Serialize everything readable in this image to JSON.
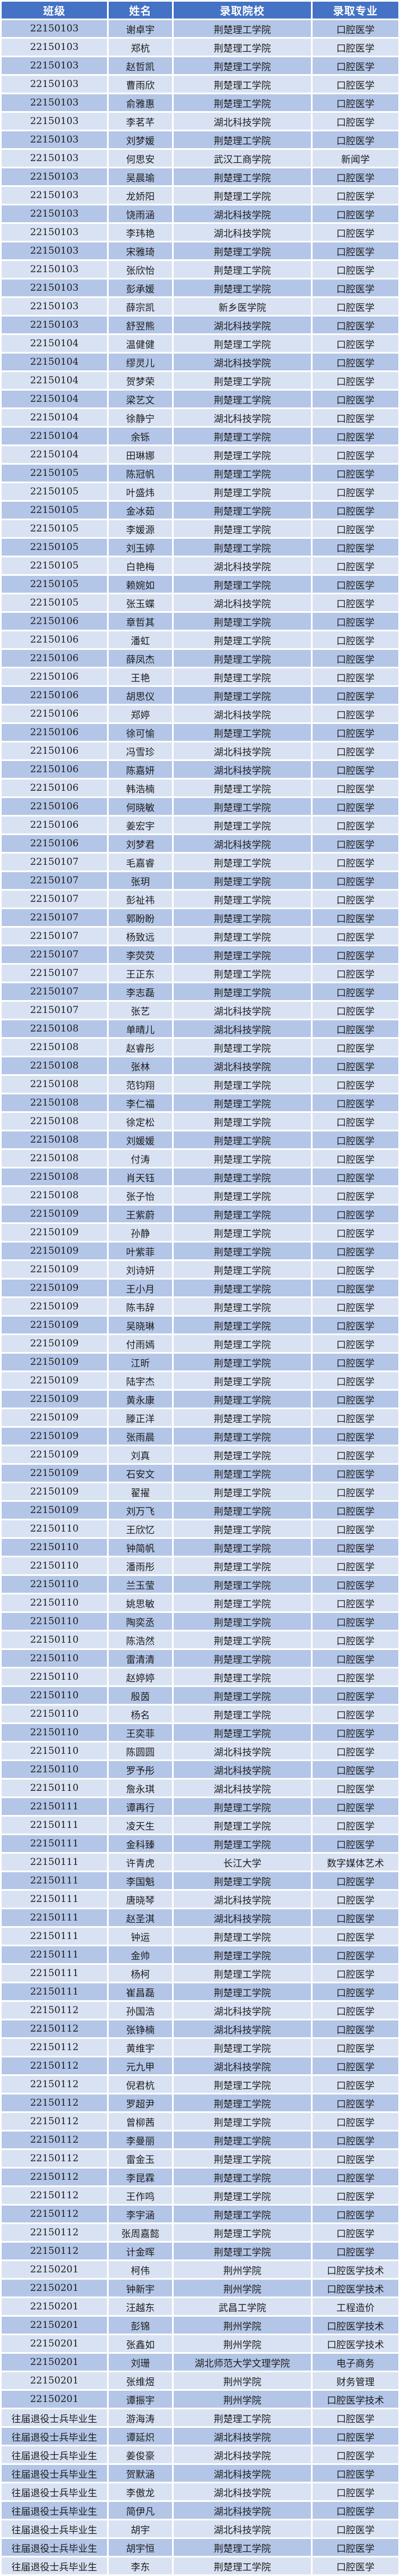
{
  "colors": {
    "header_bg": "#4472C4",
    "header_text": "#FFFFFF",
    "row_odd_bg": "#B4C6E7",
    "row_even_bg": "#D9E2F3",
    "gridline": "#FFFFFF",
    "cell_text": "#1C1C1C"
  },
  "table": {
    "columns": [
      "班级",
      "姓名",
      "录取院校",
      "录取专业"
    ],
    "rows": [
      [
        "22150103",
        "谢卓宇",
        "荆楚理工学院",
        "口腔医学"
      ],
      [
        "22150103",
        "郑杭",
        "荆楚理工学院",
        "口腔医学"
      ],
      [
        "22150103",
        "赵哲凯",
        "荆楚理工学院",
        "口腔医学"
      ],
      [
        "22150103",
        "曹雨欣",
        "荆楚理工学院",
        "口腔医学"
      ],
      [
        "22150103",
        "俞雅惠",
        "荆楚理工学院",
        "口腔医学"
      ],
      [
        "22150103",
        "李茗芊",
        "湖北科技学院",
        "口腔医学"
      ],
      [
        "22150103",
        "刘梦媛",
        "荆楚理工学院",
        "口腔医学"
      ],
      [
        "22150103",
        "何思安",
        "武汉工商学院",
        "新闻学"
      ],
      [
        "22150103",
        "吴晨瑜",
        "荆楚理工学院",
        "口腔医学"
      ],
      [
        "22150103",
        "龙娇阳",
        "荆楚理工学院",
        "口腔医学"
      ],
      [
        "22150103",
        "饶雨涵",
        "湖北科技学院",
        "口腔医学"
      ],
      [
        "22150103",
        "李玮艳",
        "湖北科技学院",
        "口腔医学"
      ],
      [
        "22150103",
        "宋雅琦",
        "荆楚理工学院",
        "口腔医学"
      ],
      [
        "22150103",
        "张欣怡",
        "荆楚理工学院",
        "口腔医学"
      ],
      [
        "22150103",
        "彭承媛",
        "荆楚理工学院",
        "口腔医学"
      ],
      [
        "22150103",
        "薛宗凯",
        "新乡医学院",
        "口腔医学"
      ],
      [
        "22150103",
        "舒翌熊",
        "湖北科技学院",
        "口腔医学"
      ],
      [
        "22150104",
        "温健健",
        "荆楚理工学院",
        "口腔医学"
      ],
      [
        "22150104",
        "缪灵儿",
        "湖北科技学院",
        "口腔医学"
      ],
      [
        "22150104",
        "贺梦荣",
        "荆楚理工学院",
        "口腔医学"
      ],
      [
        "22150104",
        "梁艺文",
        "荆楚理工学院",
        "口腔医学"
      ],
      [
        "22150104",
        "徐静宁",
        "湖北科技学院",
        "口腔医学"
      ],
      [
        "22150104",
        "余铄",
        "荆楚理工学院",
        "口腔医学"
      ],
      [
        "22150104",
        "田琳娜",
        "荆楚理工学院",
        "口腔医学"
      ],
      [
        "22150105",
        "陈冠帆",
        "荆楚理工学院",
        "口腔医学"
      ],
      [
        "22150105",
        "叶盛炜",
        "荆楚理工学院",
        "口腔医学"
      ],
      [
        "22150105",
        "金冰茹",
        "荆楚理工学院",
        "口腔医学"
      ],
      [
        "22150105",
        "李媛源",
        "荆楚理工学院",
        "口腔医学"
      ],
      [
        "22150105",
        "刘玉婷",
        "荆楚理工学院",
        "口腔医学"
      ],
      [
        "22150105",
        "白艳梅",
        "湖北科技学院",
        "口腔医学"
      ],
      [
        "22150105",
        "赖婉如",
        "荆楚理工学院",
        "口腔医学"
      ],
      [
        "22150105",
        "张玉蝶",
        "湖北科技学院",
        "口腔医学"
      ],
      [
        "22150106",
        "章哲其",
        "荆楚理工学院",
        "口腔医学"
      ],
      [
        "22150106",
        "潘虹",
        "荆楚理工学院",
        "口腔医学"
      ],
      [
        "22150106",
        "薛凤杰",
        "荆楚理工学院",
        "口腔医学"
      ],
      [
        "22150106",
        "王艳",
        "荆楚理工学院",
        "口腔医学"
      ],
      [
        "22150106",
        "胡思仪",
        "荆楚理工学院",
        "口腔医学"
      ],
      [
        "22150106",
        "郑婷",
        "湖北科技学院",
        "口腔医学"
      ],
      [
        "22150106",
        "徐可愉",
        "荆楚理工学院",
        "口腔医学"
      ],
      [
        "22150106",
        "冯雪珍",
        "湖北科技学院",
        "口腔医学"
      ],
      [
        "22150106",
        "陈嘉妍",
        "湖北科技学院",
        "口腔医学"
      ],
      [
        "22150106",
        "韩浩楠",
        "荆楚理工学院",
        "口腔医学"
      ],
      [
        "22150106",
        "何晓敏",
        "荆楚理工学院",
        "口腔医学"
      ],
      [
        "22150106",
        "姜宏宇",
        "荆楚理工学院",
        "口腔医学"
      ],
      [
        "22150106",
        "刘梦君",
        "湖北科技学院",
        "口腔医学"
      ],
      [
        "22150107",
        "毛嘉睿",
        "荆楚理工学院",
        "口腔医学"
      ],
      [
        "22150107",
        "张玥",
        "荆楚理工学院",
        "口腔医学"
      ],
      [
        "22150107",
        "彭祉祎",
        "荆楚理工学院",
        "口腔医学"
      ],
      [
        "22150107",
        "郭盼盼",
        "荆楚理工学院",
        "口腔医学"
      ],
      [
        "22150107",
        "杨致远",
        "荆楚理工学院",
        "口腔医学"
      ],
      [
        "22150107",
        "李荧荧",
        "荆楚理工学院",
        "口腔医学"
      ],
      [
        "22150107",
        "王正东",
        "荆楚理工学院",
        "口腔医学"
      ],
      [
        "22150107",
        "李志磊",
        "荆楚理工学院",
        "口腔医学"
      ],
      [
        "22150107",
        "张艺",
        "湖北科技学院",
        "口腔医学"
      ],
      [
        "22150108",
        "单晴儿",
        "湖北科技学院",
        "口腔医学"
      ],
      [
        "22150108",
        "赵睿彤",
        "荆楚理工学院",
        "口腔医学"
      ],
      [
        "22150108",
        "张林",
        "湖北科技学院",
        "口腔医学"
      ],
      [
        "22150108",
        "范钧翔",
        "荆楚理工学院",
        "口腔医学"
      ],
      [
        "22150108",
        "李仁福",
        "荆楚理工学院",
        "口腔医学"
      ],
      [
        "22150108",
        "徐定松",
        "荆楚理工学院",
        "口腔医学"
      ],
      [
        "22150108",
        "刘媛媛",
        "荆楚理工学院",
        "口腔医学"
      ],
      [
        "22150108",
        "付涛",
        "荆楚理工学院",
        "口腔医学"
      ],
      [
        "22150108",
        "肖天钰",
        "荆楚理工学院",
        "口腔医学"
      ],
      [
        "22150108",
        "张子怡",
        "荆楚理工学院",
        "口腔医学"
      ],
      [
        "22150109",
        "王紫蔚",
        "荆楚理工学院",
        "口腔医学"
      ],
      [
        "22150109",
        "孙静",
        "荆楚理工学院",
        "口腔医学"
      ],
      [
        "22150109",
        "叶紫菲",
        "荆楚理工学院",
        "口腔医学"
      ],
      [
        "22150109",
        "刘诗妍",
        "荆楚理工学院",
        "口腔医学"
      ],
      [
        "22150109",
        "王小月",
        "荆楚理工学院",
        "口腔医学"
      ],
      [
        "22150109",
        "陈韦辞",
        "荆楚理工学院",
        "口腔医学"
      ],
      [
        "22150109",
        "吴晓琳",
        "荆楚理工学院",
        "口腔医学"
      ],
      [
        "22150109",
        "付雨嫣",
        "荆楚理工学院",
        "口腔医学"
      ],
      [
        "22150109",
        "江昕",
        "荆楚理工学院",
        "口腔医学"
      ],
      [
        "22150109",
        "陆宇杰",
        "荆楚理工学院",
        "口腔医学"
      ],
      [
        "22150109",
        "黄永康",
        "荆楚理工学院",
        "口腔医学"
      ],
      [
        "22150109",
        "滕正洋",
        "荆楚理工学院",
        "口腔医学"
      ],
      [
        "22150109",
        "张雨晨",
        "荆楚理工学院",
        "口腔医学"
      ],
      [
        "22150109",
        "刘真",
        "荆楚理工学院",
        "口腔医学"
      ],
      [
        "22150109",
        "石安文",
        "荆楚理工学院",
        "口腔医学"
      ],
      [
        "22150109",
        "翟擢",
        "荆楚理工学院",
        "口腔医学"
      ],
      [
        "22150109",
        "刘万飞",
        "荆楚理工学院",
        "口腔医学"
      ],
      [
        "22150110",
        "王欣忆",
        "荆楚理工学院",
        "口腔医学"
      ],
      [
        "22150110",
        "钟简帆",
        "荆楚理工学院",
        "口腔医学"
      ],
      [
        "22150110",
        "潘雨彤",
        "荆楚理工学院",
        "口腔医学"
      ],
      [
        "22150110",
        "兰玉莹",
        "荆楚理工学院",
        "口腔医学"
      ],
      [
        "22150110",
        "姚思敏",
        "荆楚理工学院",
        "口腔医学"
      ],
      [
        "22150110",
        "陶奕丞",
        "荆楚理工学院",
        "口腔医学"
      ],
      [
        "22150110",
        "陈浩然",
        "荆楚理工学院",
        "口腔医学"
      ],
      [
        "22150110",
        "雷清清",
        "荆楚理工学院",
        "口腔医学"
      ],
      [
        "22150110",
        "赵婷婷",
        "荆楚理工学院",
        "口腔医学"
      ],
      [
        "22150110",
        "殷茵",
        "荆楚理工学院",
        "口腔医学"
      ],
      [
        "22150110",
        "杨名",
        "荆楚理工学院",
        "口腔医学"
      ],
      [
        "22150110",
        "王奕菲",
        "荆楚理工学院",
        "口腔医学"
      ],
      [
        "22150110",
        "陈圆圆",
        "湖北科技学院",
        "口腔医学"
      ],
      [
        "22150110",
        "罗予彤",
        "湖北科技学院",
        "口腔医学"
      ],
      [
        "22150110",
        "詹永琪",
        "湖北科技学院",
        "口腔医学"
      ],
      [
        "22150111",
        "谭再行",
        "荆楚理工学院",
        "口腔医学"
      ],
      [
        "22150111",
        "凌天生",
        "荆楚理工学院",
        "口腔医学"
      ],
      [
        "22150111",
        "金科臻",
        "荆楚理工学院",
        "口腔医学"
      ],
      [
        "22150111",
        "许青虎",
        "长江大学",
        "数字媒体艺术"
      ],
      [
        "22150111",
        "李国魁",
        "荆楚理工学院",
        "口腔医学"
      ],
      [
        "22150111",
        "唐晓琴",
        "湖北科技学院",
        "口腔医学"
      ],
      [
        "22150111",
        "赵圣淇",
        "湖北科技学院",
        "口腔医学"
      ],
      [
        "22150111",
        "钟运",
        "荆楚理工学院",
        "口腔医学"
      ],
      [
        "22150111",
        "金帅",
        "荆楚理工学院",
        "口腔医学"
      ],
      [
        "22150111",
        "杨柯",
        "荆楚理工学院",
        "口腔医学"
      ],
      [
        "22150111",
        "崔昌磊",
        "荆楚理工学院",
        "口腔医学"
      ],
      [
        "22150112",
        "孙国浩",
        "湖北科技学院",
        "口腔医学"
      ],
      [
        "22150112",
        "张铮楠",
        "湖北科技学院",
        "口腔医学"
      ],
      [
        "22150112",
        "黄维宇",
        "荆楚理工学院",
        "口腔医学"
      ],
      [
        "22150112",
        "元九甲",
        "湖北科技学院",
        "口腔医学"
      ],
      [
        "22150112",
        "倪君杭",
        "荆楚理工学院",
        "口腔医学"
      ],
      [
        "22150112",
        "罗超尹",
        "荆楚理工学院",
        "口腔医学"
      ],
      [
        "22150112",
        "曾柳茜",
        "荆楚理工学院",
        "口腔医学"
      ],
      [
        "22150112",
        "李曼丽",
        "荆楚理工学院",
        "口腔医学"
      ],
      [
        "22150112",
        "雷金玉",
        "荆楚理工学院",
        "口腔医学"
      ],
      [
        "22150112",
        "李昆霖",
        "荆楚理工学院",
        "口腔医学"
      ],
      [
        "22150112",
        "王作鸣",
        "荆楚理工学院",
        "口腔医学"
      ],
      [
        "22150112",
        "李宇涵",
        "荆楚理工学院",
        "口腔医学"
      ],
      [
        "22150112",
        "张周嘉懿",
        "荆楚理工学院",
        "口腔医学"
      ],
      [
        "22150112",
        "计金晖",
        "荆楚理工学院",
        "口腔医学"
      ],
      [
        "22150201",
        "柯伟",
        "荆州学院",
        "口腔医学技术"
      ],
      [
        "22150201",
        "钟新宇",
        "荆州学院",
        "口腔医学技术"
      ],
      [
        "22150201",
        "汪越东",
        "武昌工学院",
        "工程造价"
      ],
      [
        "22150201",
        "彭锦",
        "荆州学院",
        "口腔医学技术"
      ],
      [
        "22150201",
        "张鑫如",
        "荆州学院",
        "口腔医学技术"
      ],
      [
        "22150201",
        "刘珊",
        "湖北师范大学文理学院",
        "电子商务"
      ],
      [
        "22150201",
        "张维煜",
        "荆州学院",
        "财务管理"
      ],
      [
        "22150201",
        "谭振宇",
        "荆州学院",
        "口腔医学技术"
      ],
      [
        "往届退役士兵毕业生",
        "游海涛",
        "荆楚理工学院",
        "口腔医学"
      ],
      [
        "往届退役士兵毕业生",
        "谭延炽",
        "湖北科技学院",
        "口腔医学"
      ],
      [
        "往届退役士兵毕业生",
        "姜俊豪",
        "湖北科技学院",
        "口腔医学"
      ],
      [
        "往届退役士兵毕业生",
        "贺默涵",
        "湖北科技学院",
        "口腔医学"
      ],
      [
        "往届退役士兵毕业生",
        "李傲龙",
        "湖北科技学院",
        "口腔医学"
      ],
      [
        "往届退役士兵毕业生",
        "简伊凡",
        "湖北科技学院",
        "口腔医学"
      ],
      [
        "往届退役士兵毕业生",
        "胡宇",
        "湖北科技学院",
        "口腔医学"
      ],
      [
        "往届退役士兵毕业生",
        "胡宇恒",
        "荆楚理工学院",
        "口腔医学"
      ],
      [
        "往届退役士兵毕业生",
        "李东",
        "荆楚理工学院",
        "口腔医学"
      ]
    ]
  }
}
